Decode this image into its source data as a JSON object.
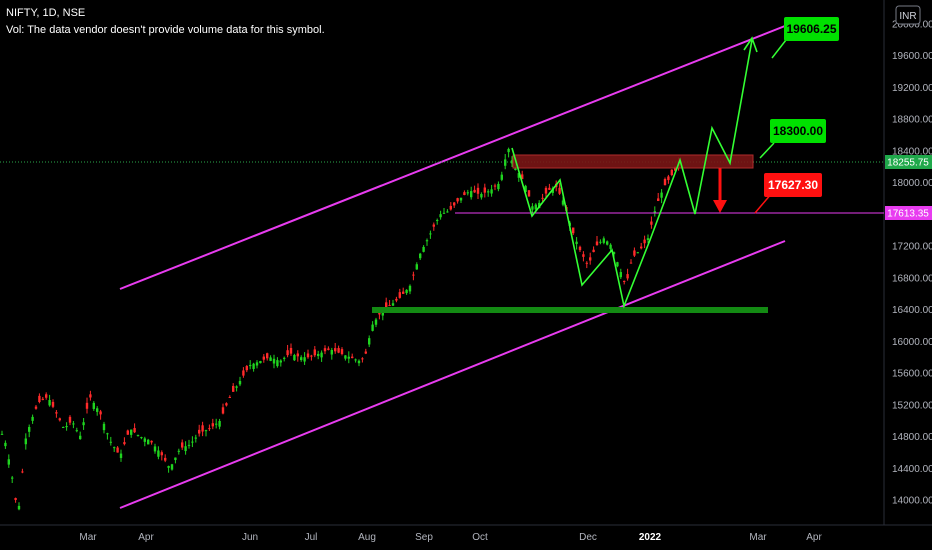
{
  "header": {
    "symbol_line": "NIFTY, 1D, NSE",
    "volume_note": "Vol: The data vendor doesn't provide volume data for this symbol."
  },
  "currency_badge": "INR",
  "colors": {
    "up": "#1fd41f",
    "down": "#ff2a2a",
    "channel": "#e83cf0",
    "projection": "#33ff33",
    "support": "#138a13",
    "resistance_zone": "#7a1616",
    "target_green": "#00e000",
    "target_red": "#ff1010"
  },
  "chart_data": {
    "type": "candlestick",
    "y_axis": {
      "min": 13700,
      "max": 20300,
      "ticks": [
        "20000.00",
        "19600.00",
        "19200.00",
        "18800.00",
        "18400.00",
        "18000.00",
        "17600.00",
        "17200.00",
        "16800.00",
        "16400.00",
        "16000.00",
        "15600.00",
        "15200.00",
        "14800.00",
        "14400.00",
        "14000.00"
      ]
    },
    "x_axis": {
      "months": [
        "Mar",
        "Apr",
        "Jun",
        "Jul",
        "Aug",
        "Sep",
        "Oct",
        "Dec",
        "2022",
        "Mar",
        "Apr"
      ]
    },
    "price_labels": {
      "last": "18255.75",
      "level": "17613.35"
    },
    "annotations": {
      "target_high": "19606.25",
      "target_mid": "18300.00",
      "target_low": "17627.30"
    },
    "approx_close_path": [
      [
        0,
        14900
      ],
      [
        6,
        14700
      ],
      [
        12,
        14300
      ],
      [
        18,
        13800
      ],
      [
        26,
        14800
      ],
      [
        34,
        15100
      ],
      [
        40,
        15250
      ],
      [
        48,
        15300
      ],
      [
        56,
        15100
      ],
      [
        64,
        14900
      ],
      [
        72,
        15000
      ],
      [
        80,
        14800
      ],
      [
        90,
        15300
      ],
      [
        100,
        15100
      ],
      [
        110,
        14750
      ],
      [
        120,
        14550
      ],
      [
        130,
        14900
      ],
      [
        140,
        14800
      ],
      [
        150,
        14750
      ],
      [
        160,
        14600
      ],
      [
        170,
        14400
      ],
      [
        180,
        14650
      ],
      [
        190,
        14700
      ],
      [
        200,
        14850
      ],
      [
        210,
        14900
      ],
      [
        220,
        15000
      ],
      [
        230,
        15300
      ],
      [
        240,
        15500
      ],
      [
        250,
        15700
      ],
      [
        260,
        15750
      ],
      [
        270,
        15800
      ],
      [
        280,
        15750
      ],
      [
        290,
        15850
      ],
      [
        300,
        15800
      ],
      [
        310,
        15800
      ],
      [
        320,
        15850
      ],
      [
        330,
        15900
      ],
      [
        340,
        15850
      ],
      [
        350,
        15800
      ],
      [
        360,
        15750
      ],
      [
        365,
        15800
      ],
      [
        372,
        16200
      ],
      [
        380,
        16350
      ],
      [
        390,
        16450
      ],
      [
        400,
        16550
      ],
      [
        410,
        16700
      ],
      [
        420,
        17100
      ],
      [
        430,
        17350
      ],
      [
        440,
        17600
      ],
      [
        450,
        17650
      ],
      [
        460,
        17800
      ],
      [
        470,
        17900
      ],
      [
        480,
        17850
      ],
      [
        490,
        17900
      ],
      [
        500,
        18000
      ],
      [
        508,
        18450
      ],
      [
        514,
        18200
      ],
      [
        520,
        18100
      ],
      [
        526,
        17950
      ],
      [
        532,
        17700
      ],
      [
        540,
        17750
      ],
      [
        548,
        17900
      ],
      [
        556,
        17950
      ],
      [
        564,
        17750
      ],
      [
        572,
        17400
      ],
      [
        580,
        17150
      ],
      [
        588,
        16950
      ],
      [
        596,
        17200
      ],
      [
        604,
        17300
      ],
      [
        612,
        17200
      ],
      [
        620,
        16900
      ],
      [
        626,
        16700
      ],
      [
        632,
        17050
      ],
      [
        640,
        17150
      ],
      [
        648,
        17300
      ],
      [
        656,
        17700
      ],
      [
        664,
        17950
      ],
      [
        672,
        18100
      ],
      [
        680,
        18230
      ]
    ]
  }
}
